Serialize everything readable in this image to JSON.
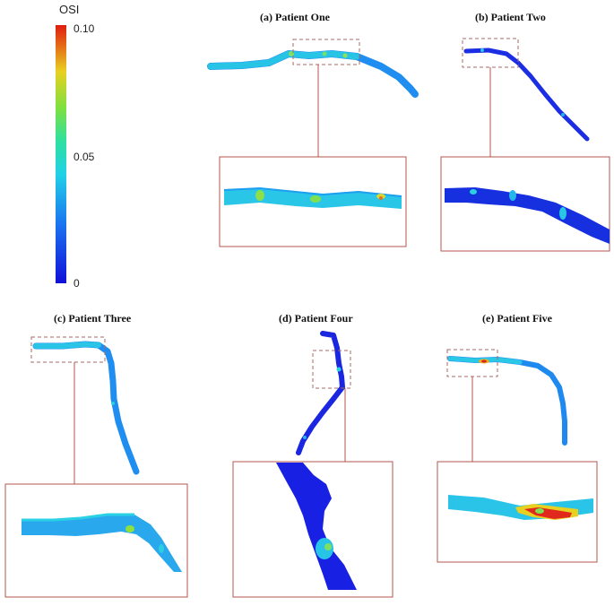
{
  "colorbar": {
    "title": "OSI",
    "tick_top": "0.10",
    "tick_mid": "0.05",
    "tick_bottom": "0"
  },
  "panels": [
    {
      "title": "(a) Patient One"
    },
    {
      "title": "(b) Patient Two"
    },
    {
      "title": "(c) Patient Three"
    },
    {
      "title": "(d) Patient Four"
    },
    {
      "title": "(e) Patient Five"
    }
  ],
  "colors": {
    "low": "#1414e6",
    "mid": "#20c8e8",
    "high": "#e01c10",
    "frame": "#b5544f"
  }
}
